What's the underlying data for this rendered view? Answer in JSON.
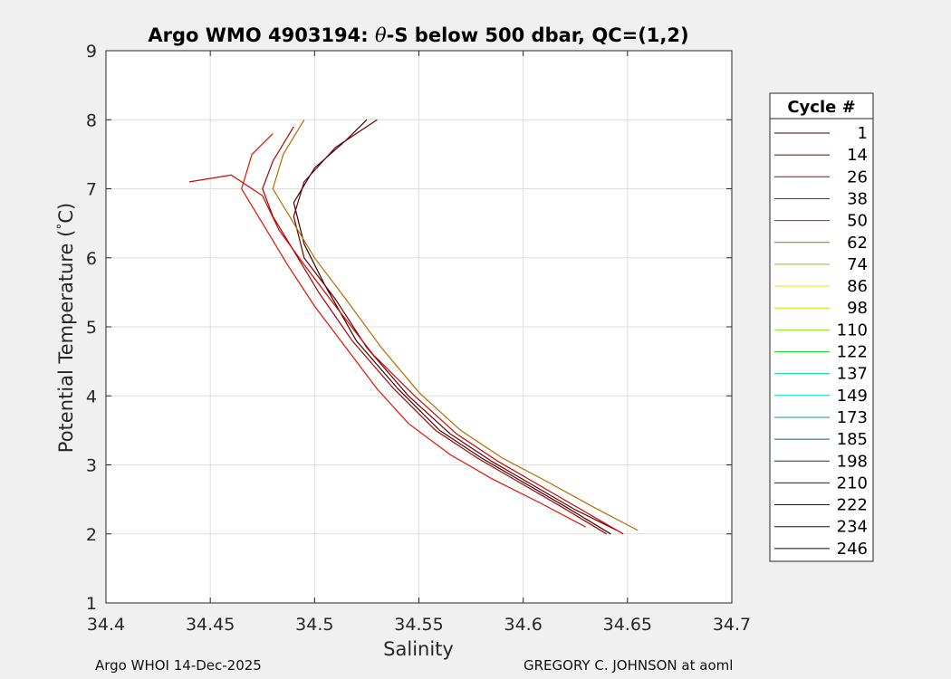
{
  "chart_data": {
    "type": "line",
    "title_prefix": "Argo WMO 4903194: ",
    "title_symbol": "θ",
    "title_suffix": "-S below 500 dbar,  QC=(1,2)",
    "xlabel": "Salinity",
    "ylabel_main": "Potential Temperature (",
    "ylabel_degree": "°",
    "ylabel_end": "C)",
    "xlim": [
      34.4,
      34.7
    ],
    "ylim": [
      1,
      9
    ],
    "xticks": [
      "34.4",
      "34.45",
      "34.5",
      "34.55",
      "34.6",
      "34.65",
      "34.7"
    ],
    "yticks": [
      "1",
      "2",
      "3",
      "4",
      "5",
      "6",
      "7",
      "8",
      "9"
    ],
    "grid": true,
    "legend_title": "Cycle #",
    "legend_position": "right",
    "series": [
      {
        "name": "1",
        "color": "#3a0000",
        "points": [
          [
            34.642,
            2.0
          ],
          [
            34.62,
            2.4
          ],
          [
            34.6,
            2.75
          ],
          [
            34.58,
            3.1
          ],
          [
            34.56,
            3.5
          ],
          [
            34.54,
            4.1
          ],
          [
            34.52,
            4.8
          ],
          [
            34.505,
            5.6
          ],
          [
            34.495,
            6.2
          ],
          [
            34.49,
            6.8
          ],
          [
            34.5,
            7.3
          ],
          [
            34.515,
            7.7
          ],
          [
            34.525,
            8.0
          ]
        ]
      },
      {
        "name": "14",
        "color": "#6a0000",
        "points": [
          [
            34.645,
            2.05
          ],
          [
            34.625,
            2.35
          ],
          [
            34.605,
            2.7
          ],
          [
            34.585,
            3.05
          ],
          [
            34.565,
            3.45
          ],
          [
            34.545,
            4.0
          ],
          [
            34.525,
            4.7
          ],
          [
            34.51,
            5.4
          ],
          [
            34.495,
            6.0
          ],
          [
            34.49,
            6.6
          ],
          [
            34.495,
            7.1
          ],
          [
            34.51,
            7.6
          ],
          [
            34.53,
            8.0
          ]
        ]
      },
      {
        "name": "26",
        "color": "#aa0000",
        "points": [
          [
            34.64,
            2.0
          ],
          [
            34.618,
            2.4
          ],
          [
            34.598,
            2.75
          ],
          [
            34.578,
            3.1
          ],
          [
            34.558,
            3.5
          ],
          [
            34.538,
            4.1
          ],
          [
            34.518,
            4.8
          ],
          [
            34.502,
            5.5
          ],
          [
            34.49,
            6.1
          ],
          [
            34.48,
            6.6
          ],
          [
            34.475,
            7.0
          ],
          [
            34.48,
            7.4
          ],
          [
            34.49,
            7.9
          ]
        ]
      },
      {
        "name": "38",
        "color": "#d40000",
        "points": [
          [
            34.648,
            2.0
          ],
          [
            34.628,
            2.35
          ],
          [
            34.608,
            2.7
          ],
          [
            34.588,
            3.05
          ],
          [
            34.568,
            3.45
          ],
          [
            34.548,
            4.0
          ],
          [
            34.528,
            4.6
          ],
          [
            34.51,
            5.3
          ],
          [
            34.495,
            5.9
          ],
          [
            34.483,
            6.4
          ],
          [
            34.475,
            6.9
          ],
          [
            34.46,
            7.2
          ],
          [
            34.44,
            7.1
          ]
        ]
      },
      {
        "name": "50",
        "color": "#e01000",
        "points": [
          [
            34.63,
            2.1
          ],
          [
            34.608,
            2.45
          ],
          [
            34.585,
            2.8
          ],
          [
            34.565,
            3.15
          ],
          [
            34.545,
            3.6
          ],
          [
            34.53,
            4.1
          ],
          [
            34.515,
            4.7
          ],
          [
            34.5,
            5.3
          ],
          [
            34.487,
            5.9
          ],
          [
            34.475,
            6.5
          ],
          [
            34.465,
            7.0
          ],
          [
            34.47,
            7.5
          ],
          [
            34.48,
            7.8
          ]
        ]
      },
      {
        "name": "62",
        "color": "#b36b00",
        "points": [
          [
            34.655,
            2.05
          ],
          [
            34.633,
            2.4
          ],
          [
            34.612,
            2.75
          ],
          [
            34.59,
            3.1
          ],
          [
            34.57,
            3.5
          ],
          [
            34.55,
            4.05
          ],
          [
            34.532,
            4.7
          ],
          [
            34.515,
            5.4
          ],
          [
            34.5,
            6.0
          ],
          [
            34.49,
            6.5
          ],
          [
            34.48,
            7.0
          ],
          [
            34.485,
            7.5
          ],
          [
            34.495,
            8.0
          ]
        ]
      },
      {
        "name": "74",
        "color": "#c9a400",
        "points": []
      },
      {
        "name": "86",
        "color": "#e6e600",
        "points": []
      },
      {
        "name": "98",
        "color": "#c8e000",
        "points": []
      },
      {
        "name": "110",
        "color": "#7ee600",
        "points": []
      },
      {
        "name": "122",
        "color": "#22e02a",
        "points": []
      },
      {
        "name": "137",
        "color": "#00d98a",
        "points": []
      },
      {
        "name": "149",
        "color": "#00cbc4",
        "points": []
      },
      {
        "name": "173",
        "color": "#0098a8",
        "points": []
      },
      {
        "name": "185",
        "color": "#006a8a",
        "points": []
      },
      {
        "name": "198",
        "color": "#003a7a",
        "points": []
      },
      {
        "name": "210",
        "color": "#101a80",
        "points": []
      },
      {
        "name": "222",
        "color": "#0a0a70",
        "points": []
      },
      {
        "name": "234",
        "color": "#14082e",
        "points": []
      },
      {
        "name": "246",
        "color": "#0a0020",
        "points": []
      }
    ]
  },
  "footer": {
    "left": "Argo WHOI 14-Dec-2025",
    "right": "GREGORY C. JOHNSON at aoml"
  }
}
